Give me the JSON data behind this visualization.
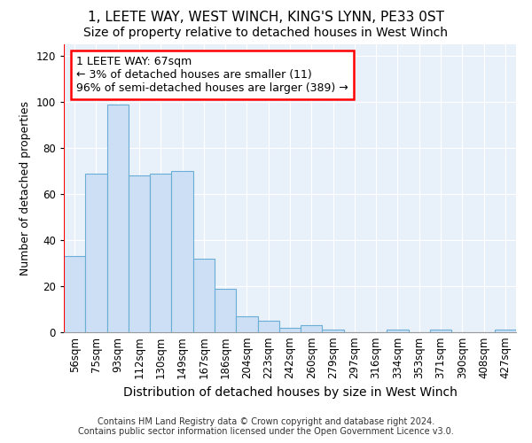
{
  "title": "1, LEETE WAY, WEST WINCH, KING'S LYNN, PE33 0ST",
  "subtitle": "Size of property relative to detached houses in West Winch",
  "xlabel": "Distribution of detached houses by size in West Winch",
  "ylabel": "Number of detached properties",
  "bar_color": "#ccdff5",
  "bar_edge_color": "#6aaed6",
  "categories": [
    "56sqm",
    "75sqm",
    "93sqm",
    "112sqm",
    "130sqm",
    "149sqm",
    "167sqm",
    "186sqm",
    "204sqm",
    "223sqm",
    "242sqm",
    "260sqm",
    "279sqm",
    "297sqm",
    "316sqm",
    "334sqm",
    "353sqm",
    "371sqm",
    "390sqm",
    "408sqm",
    "427sqm"
  ],
  "values": [
    33,
    69,
    99,
    68,
    69,
    70,
    32,
    19,
    7,
    5,
    2,
    3,
    1,
    0,
    0,
    1,
    0,
    1,
    0,
    0,
    1
  ],
  "ylim": [
    0,
    125
  ],
  "yticks": [
    0,
    20,
    40,
    60,
    80,
    100,
    120
  ],
  "annotation_text": "1 LEETE WAY: 67sqm\n← 3% of detached houses are smaller (11)\n96% of semi-detached houses are larger (389) →",
  "annotation_box_color": "white",
  "annotation_box_edgecolor": "red",
  "vline_position": -0.5,
  "background_color": "#e8f0fa",
  "footer_text": "Contains HM Land Registry data © Crown copyright and database right 2024.\nContains public sector information licensed under the Open Government Licence v3.0.",
  "title_fontsize": 11,
  "subtitle_fontsize": 10,
  "xlabel_fontsize": 10,
  "ylabel_fontsize": 9,
  "tick_fontsize": 8.5,
  "footer_fontsize": 7,
  "annotation_fontsize": 9
}
